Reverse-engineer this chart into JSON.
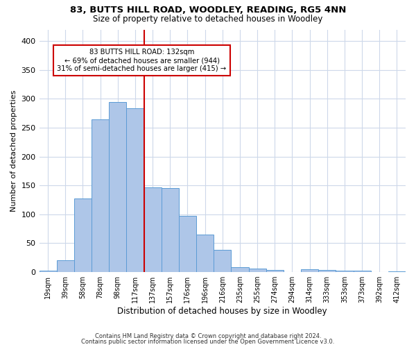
{
  "title_line1": "83, BUTTS HILL ROAD, WOODLEY, READING, RG5 4NN",
  "title_line2": "Size of property relative to detached houses in Woodley",
  "xlabel": "Distribution of detached houses by size in Woodley",
  "ylabel": "Number of detached properties",
  "categories": [
    "19sqm",
    "39sqm",
    "58sqm",
    "78sqm",
    "98sqm",
    "117sqm",
    "137sqm",
    "157sqm",
    "176sqm",
    "196sqm",
    "216sqm",
    "235sqm",
    "255sqm",
    "274sqm",
    "294sqm",
    "314sqm",
    "333sqm",
    "353sqm",
    "373sqm",
    "392sqm",
    "412sqm"
  ],
  "values": [
    2,
    21,
    128,
    265,
    295,
    284,
    147,
    145,
    98,
    65,
    38,
    8,
    6,
    4,
    0,
    5,
    4,
    2,
    2,
    0,
    1
  ],
  "bar_color": "#aec6e8",
  "bar_edge_color": "#5b9bd5",
  "vline_x_index": 6,
  "vline_color": "#cc0000",
  "annotation_text_line1": "83 BUTTS HILL ROAD: 132sqm",
  "annotation_text_line2": "← 69% of detached houses are smaller (944)",
  "annotation_text_line3": "31% of semi-detached houses are larger (415) →",
  "annotation_box_color": "#ffffff",
  "annotation_box_edge": "#cc0000",
  "ylim": [
    0,
    420
  ],
  "yticks": [
    0,
    50,
    100,
    150,
    200,
    250,
    300,
    350,
    400
  ],
  "footer_line1": "Contains HM Land Registry data © Crown copyright and database right 2024.",
  "footer_line2": "Contains public sector information licensed under the Open Government Licence v3.0.",
  "background_color": "#ffffff",
  "grid_color": "#cdd8ea"
}
